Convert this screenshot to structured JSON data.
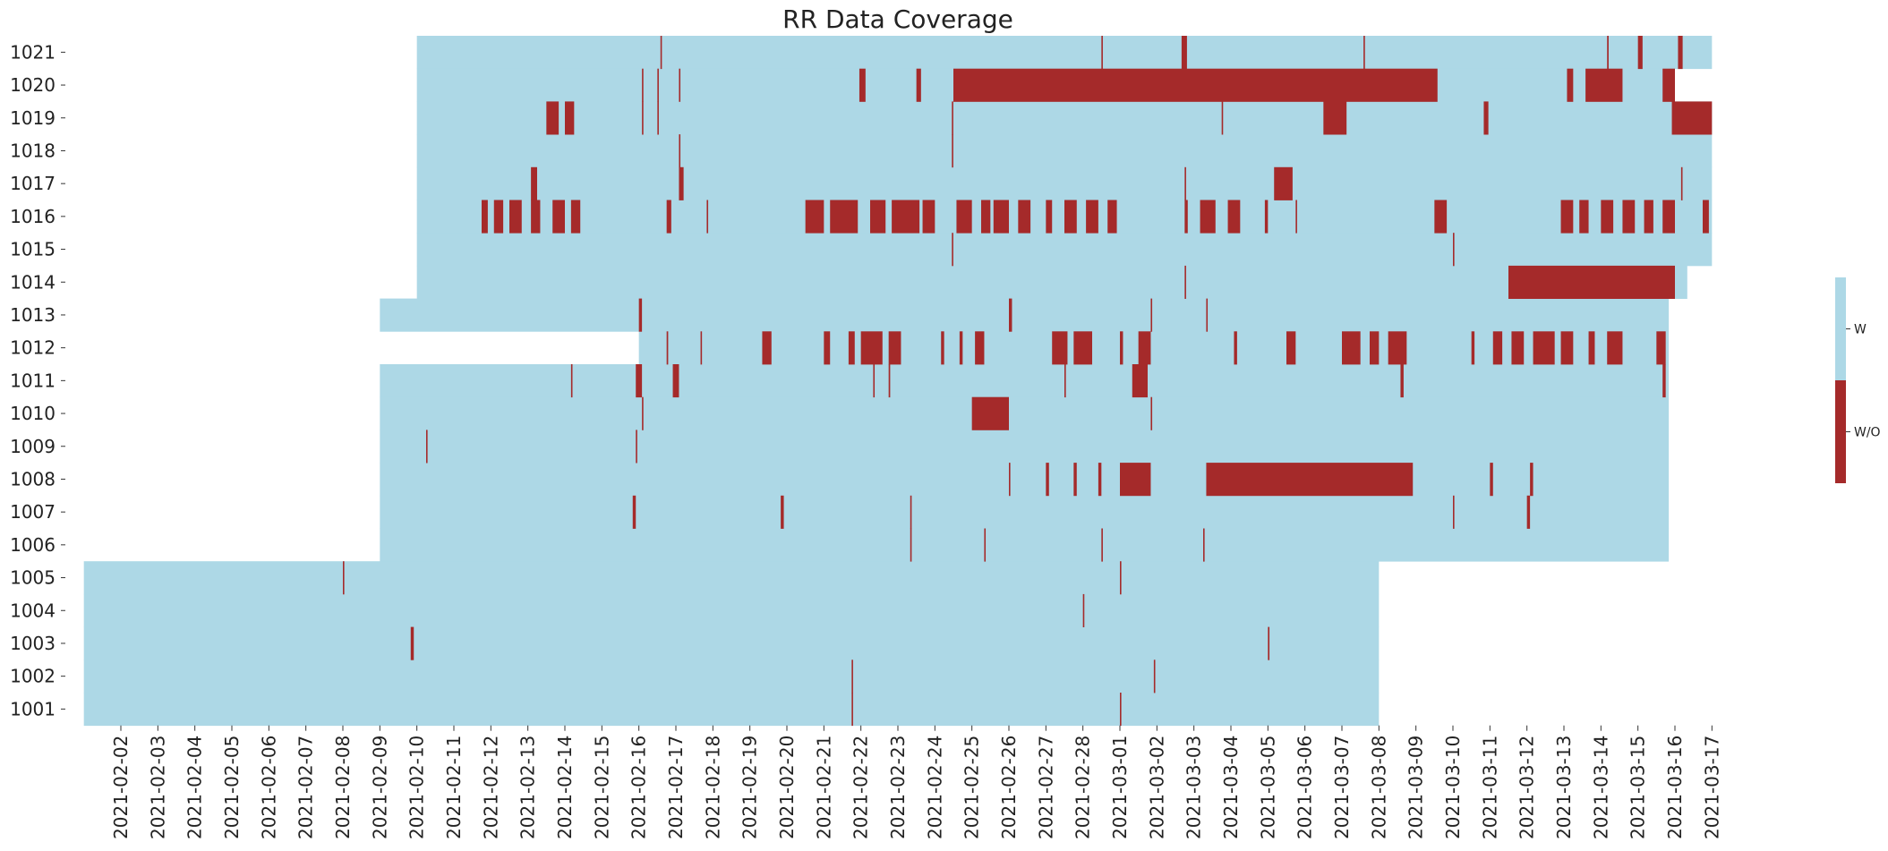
{
  "chart_data": {
    "type": "heatmap",
    "title": "RR Data Coverage",
    "xlabel": "",
    "ylabel": "",
    "colors": {
      "with": "#add8e6",
      "without": "#a52a2a"
    },
    "legend": {
      "placement": "right",
      "entries": [
        {
          "key": "with",
          "label": "W"
        },
        {
          "key": "without",
          "label": "W/O"
        }
      ]
    },
    "x_start": "2021-02-01",
    "x_end": "2021-03-18",
    "x_ticks": [
      "2021-02-02",
      "2021-02-03",
      "2021-02-04",
      "2021-02-05",
      "2021-02-06",
      "2021-02-07",
      "2021-02-08",
      "2021-02-09",
      "2021-02-10",
      "2021-02-11",
      "2021-02-12",
      "2021-02-13",
      "2021-02-14",
      "2021-02-15",
      "2021-02-16",
      "2021-02-17",
      "2021-02-18",
      "2021-02-19",
      "2021-02-20",
      "2021-02-21",
      "2021-02-22",
      "2021-02-23",
      "2021-02-24",
      "2021-02-25",
      "2021-02-26",
      "2021-02-27",
      "2021-02-28",
      "2021-03-01",
      "2021-03-02",
      "2021-03-03",
      "2021-03-04",
      "2021-03-05",
      "2021-03-06",
      "2021-03-07",
      "2021-03-08",
      "2021-03-09",
      "2021-03-10",
      "2021-03-11",
      "2021-03-12",
      "2021-03-13",
      "2021-03-14",
      "2021-03-15",
      "2021-03-16",
      "2021-03-17"
    ],
    "rows": [
      {
        "id": "1021",
        "coverage": [
          [
            "2021-02-10 12:00",
            "2021-03-17 12:00"
          ]
        ],
        "missing": [
          [
            "2021-02-17 02:00",
            "2021-02-17 02:30"
          ],
          [
            "2021-03-01 00:00",
            "2021-03-01 00:30"
          ],
          [
            "2021-03-03 04:00",
            "2021-03-03 07:30"
          ],
          [
            "2021-03-08 02:00",
            "2021-03-08 02:30"
          ],
          [
            "2021-03-14 16:00",
            "2021-03-14 17:00"
          ],
          [
            "2021-03-15 12:00",
            "2021-03-15 15:00"
          ],
          [
            "2021-03-16 14:00",
            "2021-03-16 17:00"
          ]
        ]
      },
      {
        "id": "1020",
        "coverage": [
          [
            "2021-02-10 12:00",
            "2021-03-16 12:00"
          ]
        ],
        "missing": [
          [
            "2021-02-16 14:00",
            "2021-02-16 14:30"
          ],
          [
            "2021-02-17 00:00",
            "2021-02-17 00:30"
          ],
          [
            "2021-02-17 14:00",
            "2021-02-17 14:30"
          ],
          [
            "2021-02-22 11:00",
            "2021-02-22 15:00"
          ],
          [
            "2021-02-24 00:00",
            "2021-02-24 03:00"
          ],
          [
            "2021-02-25 00:00",
            "2021-03-10 02:00"
          ],
          [
            "2021-03-13 14:00",
            "2021-03-13 18:00"
          ],
          [
            "2021-03-14 02:00",
            "2021-03-15 02:00"
          ],
          [
            "2021-03-16 04:00",
            "2021-03-16 12:00"
          ]
        ]
      },
      {
        "id": "1019",
        "coverage": [
          [
            "2021-02-10 12:00",
            "2021-03-17 12:00"
          ]
        ],
        "missing": [
          [
            "2021-02-14 00:00",
            "2021-02-14 08:00"
          ],
          [
            "2021-02-14 12:00",
            "2021-02-14 18:00"
          ],
          [
            "2021-02-16 14:00",
            "2021-02-16 14:30"
          ],
          [
            "2021-02-17 00:00",
            "2021-02-17 00:40"
          ],
          [
            "2021-02-24 23:00",
            "2021-02-24 23:30"
          ],
          [
            "2021-03-04 06:00",
            "2021-03-04 06:30"
          ],
          [
            "2021-03-07 00:00",
            "2021-03-07 15:00"
          ],
          [
            "2021-03-11 08:00",
            "2021-03-11 11:00"
          ],
          [
            "2021-03-16 10:00",
            "2021-03-17 12:00"
          ]
        ]
      },
      {
        "id": "1018",
        "coverage": [
          [
            "2021-02-10 12:00",
            "2021-03-17 12:00"
          ]
        ],
        "missing": [
          [
            "2021-02-17 14:00",
            "2021-02-17 14:30"
          ],
          [
            "2021-02-24 23:00",
            "2021-02-24 23:30"
          ]
        ]
      },
      {
        "id": "1017",
        "coverage": [
          [
            "2021-02-10 12:00",
            "2021-03-17 12:00"
          ]
        ],
        "missing": [
          [
            "2021-02-13 14:00",
            "2021-02-13 18:00"
          ],
          [
            "2021-02-17 14:00",
            "2021-02-17 17:00"
          ],
          [
            "2021-03-03 06:00",
            "2021-03-03 06:30"
          ],
          [
            "2021-03-05 16:00",
            "2021-03-06 04:00"
          ],
          [
            "2021-03-16 16:00",
            "2021-03-16 16:30"
          ]
        ]
      },
      {
        "id": "1016",
        "coverage": [
          [
            "2021-02-10 12:00",
            "2021-03-17 12:00"
          ]
        ],
        "missing": [
          [
            "2021-02-12 06:00",
            "2021-02-12 10:00"
          ],
          [
            "2021-02-12 14:00",
            "2021-02-12 20:00"
          ],
          [
            "2021-02-13 00:00",
            "2021-02-13 08:00"
          ],
          [
            "2021-02-13 14:00",
            "2021-02-13 20:00"
          ],
          [
            "2021-02-14 04:00",
            "2021-02-14 12:00"
          ],
          [
            "2021-02-14 16:00",
            "2021-02-14 22:00"
          ],
          [
            "2021-02-17 06:00",
            "2021-02-17 09:00"
          ],
          [
            "2021-02-18 08:00",
            "2021-02-18 08:30"
          ],
          [
            "2021-02-21 00:00",
            "2021-02-21 12:00"
          ],
          [
            "2021-02-21 16:00",
            "2021-02-22 00:00"
          ],
          [
            "2021-02-22 00:00",
            "2021-02-22 10:00"
          ],
          [
            "2021-02-22 18:00",
            "2021-02-23 04:00"
          ],
          [
            "2021-02-23 08:00",
            "2021-02-24 02:00"
          ],
          [
            "2021-02-24 04:00",
            "2021-02-24 12:00"
          ],
          [
            "2021-02-25 02:00",
            "2021-02-25 12:00"
          ],
          [
            "2021-02-25 18:00",
            "2021-02-26 00:00"
          ],
          [
            "2021-02-26 02:00",
            "2021-02-26 12:00"
          ],
          [
            "2021-02-26 18:00",
            "2021-02-27 02:00"
          ],
          [
            "2021-02-27 12:00",
            "2021-02-27 16:00"
          ],
          [
            "2021-02-28 00:00",
            "2021-02-28 08:00"
          ],
          [
            "2021-02-28 14:00",
            "2021-02-28 22:00"
          ],
          [
            "2021-03-01 04:00",
            "2021-03-01 10:00"
          ],
          [
            "2021-03-03 06:00",
            "2021-03-03 08:00"
          ],
          [
            "2021-03-03 16:00",
            "2021-03-04 02:00"
          ],
          [
            "2021-03-04 10:00",
            "2021-03-04 18:00"
          ],
          [
            "2021-03-05 10:00",
            "2021-03-05 12:00"
          ],
          [
            "2021-03-06 06:00",
            "2021-03-06 06:30"
          ],
          [
            "2021-03-10 00:00",
            "2021-03-10 08:00"
          ],
          [
            "2021-03-13 10:00",
            "2021-03-13 18:00"
          ],
          [
            "2021-03-13 22:00",
            "2021-03-14 04:00"
          ],
          [
            "2021-03-14 12:00",
            "2021-03-14 20:00"
          ],
          [
            "2021-03-15 02:00",
            "2021-03-15 10:00"
          ],
          [
            "2021-03-15 16:00",
            "2021-03-15 22:00"
          ],
          [
            "2021-03-16 04:00",
            "2021-03-16 12:00"
          ],
          [
            "2021-03-17 06:00",
            "2021-03-17 10:00"
          ]
        ]
      },
      {
        "id": "1015",
        "coverage": [
          [
            "2021-02-10 12:00",
            "2021-03-17 12:00"
          ]
        ],
        "missing": [
          [
            "2021-02-24 23:00",
            "2021-02-24 23:30"
          ],
          [
            "2021-03-10 12:00",
            "2021-03-10 12:30"
          ]
        ]
      },
      {
        "id": "1014",
        "coverage": [
          [
            "2021-02-10 12:00",
            "2021-03-16 20:00"
          ]
        ],
        "missing": [
          [
            "2021-03-03 06:00",
            "2021-03-03 06:30"
          ],
          [
            "2021-03-12 00:00",
            "2021-03-16 12:00"
          ]
        ]
      },
      {
        "id": "1013",
        "coverage": [
          [
            "2021-02-09 12:00",
            "2021-03-16 08:00"
          ]
        ],
        "missing": [
          [
            "2021-02-16 12:00",
            "2021-02-16 14:00"
          ],
          [
            "2021-02-26 12:00",
            "2021-02-26 14:00"
          ],
          [
            "2021-03-02 08:00",
            "2021-03-02 08:30"
          ],
          [
            "2021-03-03 20:00",
            "2021-03-03 20:30"
          ]
        ]
      },
      {
        "id": "1012",
        "coverage": [
          [
            "2021-02-16 12:00",
            "2021-03-16 08:00"
          ]
        ],
        "missing": [
          [
            "2021-02-17 06:00",
            "2021-02-17 07:00"
          ],
          [
            "2021-02-18 04:00",
            "2021-02-18 04:30"
          ],
          [
            "2021-02-19 20:00",
            "2021-02-20 02:00"
          ],
          [
            "2021-02-21 12:00",
            "2021-02-21 16:00"
          ],
          [
            "2021-02-22 04:00",
            "2021-02-22 08:00"
          ],
          [
            "2021-02-22 12:00",
            "2021-02-23 02:00"
          ],
          [
            "2021-02-23 06:00",
            "2021-02-23 14:00"
          ],
          [
            "2021-02-24 16:00",
            "2021-02-24 18:00"
          ],
          [
            "2021-02-25 04:00",
            "2021-02-25 06:00"
          ],
          [
            "2021-02-25 14:00",
            "2021-02-25 20:00"
          ],
          [
            "2021-02-27 16:00",
            "2021-02-28 02:00"
          ],
          [
            "2021-02-28 06:00",
            "2021-02-28 18:00"
          ],
          [
            "2021-03-01 12:00",
            "2021-03-01 14:00"
          ],
          [
            "2021-03-02 00:00",
            "2021-03-02 08:00"
          ],
          [
            "2021-03-04 14:00",
            "2021-03-04 16:00"
          ],
          [
            "2021-03-06 00:00",
            "2021-03-06 06:00"
          ],
          [
            "2021-03-07 12:00",
            "2021-03-08 00:00"
          ],
          [
            "2021-03-08 06:00",
            "2021-03-08 12:00"
          ],
          [
            "2021-03-08 18:00",
            "2021-03-09 06:00"
          ],
          [
            "2021-03-11 00:00",
            "2021-03-11 02:00"
          ],
          [
            "2021-03-11 14:00",
            "2021-03-11 20:00"
          ],
          [
            "2021-03-12 02:00",
            "2021-03-12 10:00"
          ],
          [
            "2021-03-12 16:00",
            "2021-03-13 06:00"
          ],
          [
            "2021-03-13 10:00",
            "2021-03-13 18:00"
          ],
          [
            "2021-03-14 04:00",
            "2021-03-14 08:00"
          ],
          [
            "2021-03-14 16:00",
            "2021-03-15 02:00"
          ],
          [
            "2021-03-16 00:00",
            "2021-03-16 06:00"
          ]
        ]
      },
      {
        "id": "1011",
        "coverage": [
          [
            "2021-02-09 12:00",
            "2021-03-16 08:00"
          ]
        ],
        "missing": [
          [
            "2021-02-14 16:00",
            "2021-02-14 16:30"
          ],
          [
            "2021-02-16 10:00",
            "2021-02-16 14:00"
          ],
          [
            "2021-02-17 10:00",
            "2021-02-17 14:00"
          ],
          [
            "2021-02-22 20:00",
            "2021-02-22 20:30"
          ],
          [
            "2021-02-23 06:00",
            "2021-02-23 07:00"
          ],
          [
            "2021-02-28 00:00",
            "2021-02-28 00:30"
          ],
          [
            "2021-03-01 20:00",
            "2021-03-02 06:00"
          ],
          [
            "2021-03-09 02:00",
            "2021-03-09 04:00"
          ],
          [
            "2021-03-16 04:00",
            "2021-03-16 06:00"
          ]
        ]
      },
      {
        "id": "1010",
        "coverage": [
          [
            "2021-02-09 12:00",
            "2021-03-16 08:00"
          ]
        ],
        "missing": [
          [
            "2021-02-16 14:00",
            "2021-02-16 14:30"
          ],
          [
            "2021-02-25 12:00",
            "2021-02-26 12:00"
          ],
          [
            "2021-03-02 08:00",
            "2021-03-02 08:30"
          ]
        ]
      },
      {
        "id": "1009",
        "coverage": [
          [
            "2021-02-09 12:00",
            "2021-03-16 08:00"
          ]
        ],
        "missing": [
          [
            "2021-02-10 18:00",
            "2021-02-10 18:30"
          ],
          [
            "2021-02-16 10:00",
            "2021-02-16 10:30"
          ]
        ]
      },
      {
        "id": "1008",
        "coverage": [
          [
            "2021-02-09 12:00",
            "2021-03-16 08:00"
          ]
        ],
        "missing": [
          [
            "2021-02-26 12:00",
            "2021-02-26 12:30"
          ],
          [
            "2021-02-27 12:00",
            "2021-02-27 14:00"
          ],
          [
            "2021-02-28 06:00",
            "2021-02-28 08:00"
          ],
          [
            "2021-02-28 22:00",
            "2021-02-29 00:00"
          ],
          [
            "2021-03-01 12:00",
            "2021-03-02 08:00"
          ],
          [
            "2021-03-03 20:00",
            "2021-03-09 10:00"
          ],
          [
            "2021-03-11 12:00",
            "2021-03-11 14:00"
          ],
          [
            "2021-03-12 14:00",
            "2021-03-12 16:00"
          ]
        ]
      },
      {
        "id": "1007",
        "coverage": [
          [
            "2021-02-09 12:00",
            "2021-03-16 08:00"
          ]
        ],
        "missing": [
          [
            "2021-02-16 08:00",
            "2021-02-16 10:00"
          ],
          [
            "2021-02-20 08:00",
            "2021-02-20 10:00"
          ],
          [
            "2021-02-23 20:00",
            "2021-02-23 20:30"
          ],
          [
            "2021-03-10 12:00",
            "2021-03-10 12:30"
          ],
          [
            "2021-03-12 12:00",
            "2021-03-12 14:00"
          ]
        ]
      },
      {
        "id": "1006",
        "coverage": [
          [
            "2021-02-09 12:00",
            "2021-03-16 08:00"
          ]
        ],
        "missing": [
          [
            "2021-02-23 20:00",
            "2021-02-23 20:30"
          ],
          [
            "2021-02-25 20:00",
            "2021-02-25 20:30"
          ],
          [
            "2021-02-29 00:00",
            "2021-02-29 00:30"
          ],
          [
            "2021-03-03 18:00",
            "2021-03-03 18:30"
          ]
        ]
      },
      {
        "id": "1005",
        "coverage": [
          [
            "2021-02-01 12:00",
            "2021-03-08 12:00"
          ]
        ],
        "missing": [
          [
            "2021-02-08 12:00",
            "2021-02-08 12:30"
          ],
          [
            "2021-03-01 12:00",
            "2021-03-01 12:30"
          ]
        ]
      },
      {
        "id": "1004",
        "coverage": [
          [
            "2021-02-01 12:00",
            "2021-03-08 12:00"
          ]
        ],
        "missing": [
          [
            "2021-02-28 12:00",
            "2021-02-28 12:30"
          ]
        ]
      },
      {
        "id": "1003",
        "coverage": [
          [
            "2021-02-01 12:00",
            "2021-03-08 12:00"
          ]
        ],
        "missing": [
          [
            "2021-02-10 08:00",
            "2021-02-10 10:00"
          ],
          [
            "2021-03-05 12:00",
            "2021-03-05 13:00"
          ]
        ]
      },
      {
        "id": "1002",
        "coverage": [
          [
            "2021-02-01 12:00",
            "2021-03-08 12:00"
          ]
        ],
        "missing": [
          [
            "2021-02-22 06:00",
            "2021-02-22 06:30"
          ],
          [
            "2021-03-02 10:00",
            "2021-03-02 10:30"
          ]
        ]
      },
      {
        "id": "1001",
        "coverage": [
          [
            "2021-02-01 12:00",
            "2021-03-08 12:00"
          ]
        ],
        "missing": [
          [
            "2021-02-22 06:00",
            "2021-02-22 06:30"
          ],
          [
            "2021-03-01 12:00",
            "2021-03-01 12:30"
          ]
        ]
      }
    ]
  }
}
